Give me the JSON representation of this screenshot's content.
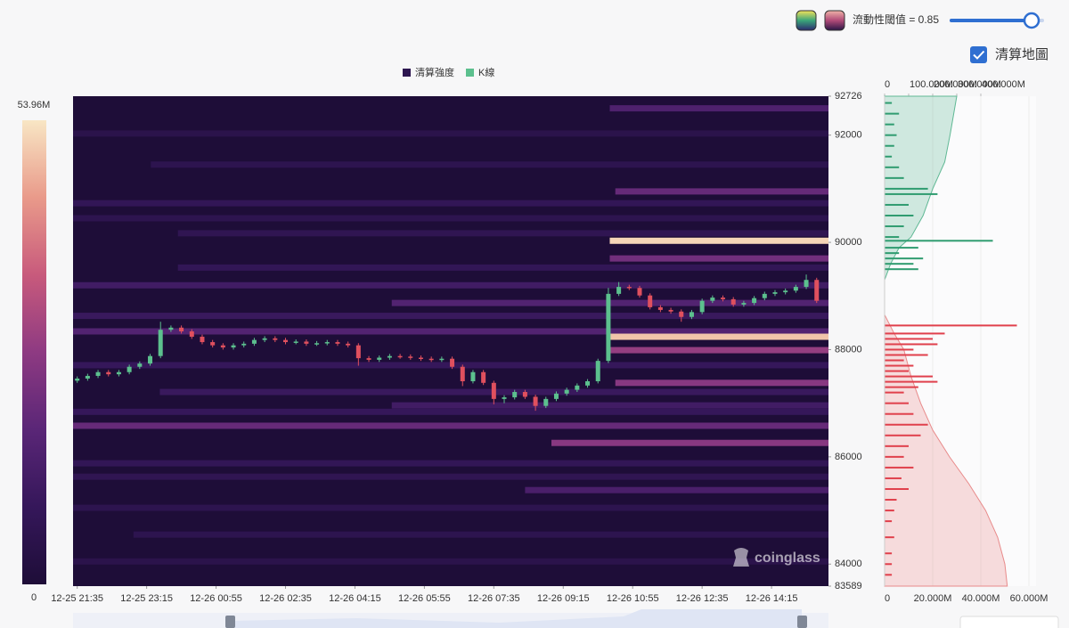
{
  "controls": {
    "threshold_label": "流動性閾值 = 0.85",
    "checkbox_label": "清算地圖"
  },
  "chart_data": [
    {
      "type": "heatmap",
      "xlim": [
        -6,
        1082
      ],
      "xticks": [
        {
          "value": 0,
          "label": "12-25 21:35"
        },
        {
          "value": 100,
          "label": "12-25 23:15"
        },
        {
          "value": 200,
          "label": "12-26 00:55"
        },
        {
          "value": 300,
          "label": "12-26 02:35"
        },
        {
          "value": 400,
          "label": "12-26 04:15"
        },
        {
          "value": 500,
          "label": "12-26 05:55"
        },
        {
          "value": 600,
          "label": "12-26 07:35"
        },
        {
          "value": 700,
          "label": "12-26 09:15"
        },
        {
          "value": 800,
          "label": "12-26 10:55"
        },
        {
          "value": 900,
          "label": "12-26 12:35"
        },
        {
          "value": 1000,
          "label": "12-26 14:15"
        }
      ],
      "ylim": [
        83589,
        92726
      ],
      "yticks": [
        83589,
        84000,
        86000,
        88000,
        90000,
        92000,
        92726
      ],
      "clim": [
        0,
        53.96
      ],
      "cticks": [
        {
          "value": 53.96,
          "label": "53.96M"
        },
        0
      ],
      "colorscale": [
        "#1e0d38",
        "#35175a",
        "#5a2677",
        "#8e3a82",
        "#c85a7c",
        "#e99a8a",
        "#f8e6c4"
      ],
      "watermark": "coinglass",
      "series": [
        {
          "name": "清算強度",
          "color": "#2d1650",
          "price": [
            92500,
            92030,
            91450,
            90950,
            90730,
            90450,
            90170,
            90030,
            89700,
            89530,
            89200,
            88870,
            88630,
            88340,
            88240,
            87990,
            87710,
            87380,
            87210,
            86960,
            86840,
            86580,
            86260,
            85880,
            85630,
            85380,
            85050,
            84550,
            84050
          ],
          "start": [
            767,
            -6,
            106,
            775,
            -6,
            -6,
            145,
            767,
            767,
            145,
            -6,
            453,
            -6,
            -6,
            767,
            767,
            -6,
            775,
            119,
            453,
            -6,
            -6,
            683,
            -6,
            -6,
            645,
            -6,
            81,
            -6
          ],
          "intensity": [
            15,
            5,
            6,
            20,
            8,
            6,
            7,
            52,
            22,
            8,
            12,
            16,
            10,
            16,
            50,
            28,
            9,
            26,
            10,
            12,
            9,
            20,
            26,
            8,
            7,
            14,
            6,
            6,
            5
          ]
        },
        {
          "name": "K線",
          "color": "#5cc08e",
          "down_color": "#e0505e",
          "x": [
            0,
            15,
            30,
            45,
            60,
            75,
            90,
            105,
            120,
            135,
            150,
            165,
            180,
            195,
            210,
            225,
            240,
            255,
            270,
            285,
            300,
            315,
            330,
            345,
            360,
            375,
            390,
            405,
            420,
            435,
            450,
            465,
            480,
            495,
            510,
            525,
            540,
            555,
            570,
            585,
            600,
            615,
            630,
            645,
            660,
            675,
            690,
            705,
            720,
            735,
            750,
            765,
            780,
            795,
            810,
            825,
            840,
            855,
            870,
            885,
            900,
            915,
            930,
            945,
            960,
            975,
            990,
            1005,
            1020,
            1035,
            1050,
            1065
          ],
          "open": [
            87420,
            87460,
            87510,
            87580,
            87540,
            87580,
            87680,
            87740,
            87880,
            88370,
            88410,
            88340,
            88240,
            88140,
            88080,
            88040,
            88080,
            88110,
            88180,
            88210,
            88180,
            88140,
            88150,
            88110,
            88120,
            88140,
            88110,
            88080,
            87840,
            87810,
            87850,
            87880,
            87870,
            87850,
            87830,
            87810,
            87830,
            87680,
            87410,
            87580,
            87380,
            87080,
            87110,
            87210,
            87120,
            86950,
            87080,
            87180,
            87250,
            87330,
            87410,
            87790,
            89040,
            89170,
            89150,
            89010,
            88790,
            88740,
            88710,
            88610,
            88700,
            88910,
            88970,
            88940,
            88840,
            88870,
            88960,
            89040,
            89070,
            89100,
            89170,
            89300
          ],
          "high": [
            87500,
            87550,
            87620,
            87620,
            87620,
            87720,
            87780,
            87920,
            88520,
            88450,
            88450,
            88380,
            88280,
            88180,
            88120,
            88120,
            88150,
            88220,
            88250,
            88250,
            88220,
            88190,
            88190,
            88160,
            88180,
            88180,
            88150,
            88120,
            87880,
            87890,
            87920,
            87920,
            87910,
            87890,
            87870,
            87870,
            87870,
            87720,
            87620,
            87620,
            87420,
            87150,
            87250,
            87250,
            87160,
            87120,
            87220,
            87290,
            87370,
            87450,
            87830,
            89150,
            89260,
            89210,
            89190,
            89050,
            88830,
            88780,
            88750,
            88740,
            88950,
            89010,
            89010,
            88980,
            88910,
            89000,
            89080,
            89110,
            89140,
            89210,
            89400,
            89340
          ],
          "low": [
            87380,
            87420,
            87470,
            87500,
            87500,
            87540,
            87640,
            87700,
            87840,
            88330,
            88300,
            88200,
            88100,
            88040,
            88000,
            88000,
            88040,
            88070,
            88140,
            88140,
            88100,
            88100,
            88070,
            88070,
            88080,
            88070,
            88040,
            87700,
            87770,
            87770,
            87810,
            87830,
            87810,
            87790,
            87770,
            87770,
            87640,
            87320,
            87370,
            87340,
            86980,
            87000,
            87070,
            87080,
            86860,
            86910,
            87040,
            87140,
            87210,
            87290,
            87370,
            87750,
            89000,
            89110,
            88970,
            88750,
            88700,
            88670,
            88520,
            88570,
            88660,
            88870,
            88900,
            88800,
            88800,
            88830,
            88920,
            89000,
            89030,
            89060,
            89130,
            88870
          ],
          "close": [
            87460,
            87510,
            87580,
            87540,
            87580,
            87680,
            87740,
            87880,
            88370,
            88410,
            88340,
            88240,
            88140,
            88080,
            88040,
            88080,
            88110,
            88180,
            88210,
            88180,
            88140,
            88150,
            88110,
            88120,
            88140,
            88110,
            88080,
            87840,
            87810,
            87850,
            87880,
            87870,
            87850,
            87830,
            87810,
            87830,
            87680,
            87410,
            87580,
            87380,
            87080,
            87110,
            87210,
            87120,
            86950,
            87080,
            87180,
            87250,
            87330,
            87410,
            87790,
            89040,
            89170,
            89150,
            89010,
            88790,
            88740,
            88710,
            88610,
            88700,
            88910,
            88970,
            88940,
            88840,
            88870,
            88960,
            89040,
            89070,
            89100,
            89170,
            89300,
            88910
          ]
        }
      ]
    },
    {
      "type": "bar",
      "ylim": [
        83589,
        92726
      ],
      "xlim": [
        0,
        60
      ],
      "xticks": [
        0,
        {
          "value": 20,
          "label": "20.000M"
        },
        {
          "value": 40,
          "label": "40.000M"
        },
        {
          "value": 60,
          "label": "60.000M"
        }
      ],
      "x2lim": [
        0,
        600
      ],
      "x2ticks": [
        0,
        {
          "value": 100,
          "label": "100.000M"
        },
        {
          "value": 200,
          "label": "200.000M"
        },
        {
          "value": 300,
          "label": "300.000M"
        },
        {
          "value": 400,
          "label": "400.000M"
        }
      ],
      "series": [
        {
          "color": "#2f9c70",
          "y": [
            92600,
            92400,
            92200,
            92000,
            91800,
            91600,
            91400,
            91200,
            91000,
            90900,
            90700,
            90500,
            90300,
            90100,
            90030,
            89900,
            89800,
            89700,
            89600,
            89500
          ],
          "values": [
            3,
            6,
            4,
            5,
            4,
            3,
            6,
            8,
            18,
            22,
            10,
            12,
            8,
            6,
            45,
            14,
            6,
            16,
            12,
            14
          ]
        },
        {
          "color": "#e0404c",
          "y": [
            88450,
            88300,
            88200,
            88100,
            88000,
            87900,
            87800,
            87700,
            87600,
            87500,
            87400,
            87300,
            87200,
            87000,
            86800,
            86600,
            86400,
            86200,
            86000,
            85800,
            85600,
            85400,
            85200,
            85000,
            84800,
            84500,
            84200,
            84000,
            83800
          ],
          "values": [
            55,
            25,
            20,
            22,
            12,
            18,
            8,
            12,
            10,
            20,
            22,
            14,
            8,
            10,
            12,
            18,
            15,
            10,
            8,
            12,
            7,
            10,
            5,
            4,
            3,
            4,
            3,
            3,
            3
          ]
        }
      ],
      "cumulative": [
        {
          "color": "#5fb894",
          "y": [
            92726,
            92000,
            91500,
            91000,
            90500,
            90100,
            89900,
            89600,
            89300
          ],
          "values": [
            300,
            272,
            250,
            200,
            160,
            110,
            60,
            25,
            0
          ]
        },
        {
          "color": "#e88a8a",
          "y": [
            88650,
            88300,
            88000,
            87500,
            87000,
            86500,
            86000,
            85500,
            85000,
            84500,
            84000,
            83589
          ],
          "values": [
            0,
            40,
            80,
            110,
            150,
            200,
            270,
            350,
            420,
            470,
            500,
            510
          ]
        }
      ]
    }
  ]
}
